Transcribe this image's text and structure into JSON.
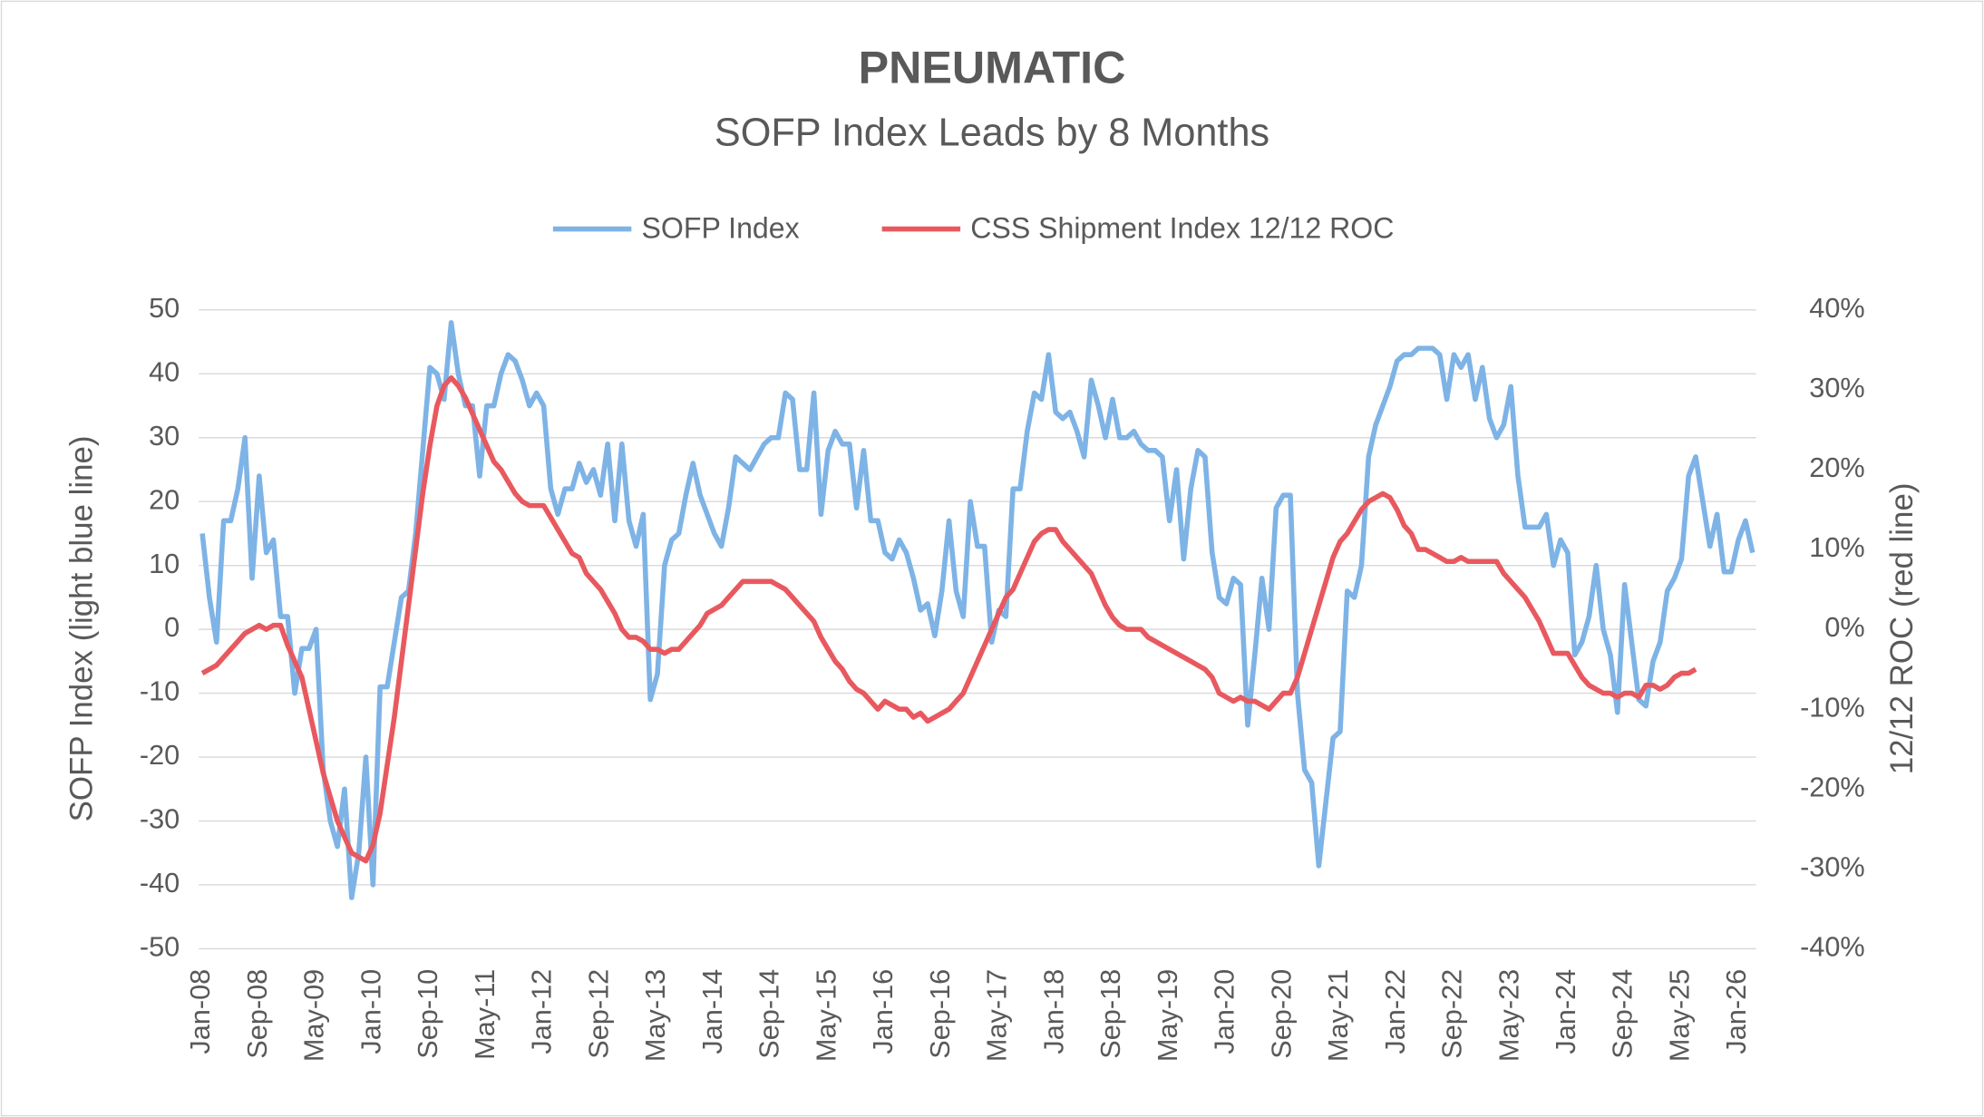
{
  "chart_data": {
    "type": "line",
    "title": "PNEUMATIC",
    "subtitle": "SOFP Index Leads by 8 Months",
    "y_label": "SOFP Index (light blue line)",
    "y2_label": "12/12 ROC (red line)",
    "categories": [
      "Jan-08",
      null,
      null,
      null,
      null,
      null,
      null,
      null,
      "Sep-08",
      null,
      null,
      null,
      null,
      null,
      null,
      null,
      "May-09",
      null,
      null,
      null,
      null,
      null,
      null,
      null,
      "Jan-10",
      null,
      null,
      null,
      null,
      null,
      null,
      null,
      "Sep-10",
      null,
      null,
      null,
      null,
      null,
      null,
      null,
      "May-11",
      null,
      null,
      null,
      null,
      null,
      null,
      null,
      "Jan-12",
      null,
      null,
      null,
      null,
      null,
      null,
      null,
      "Sep-12",
      null,
      null,
      null,
      null,
      null,
      null,
      null,
      "May-13",
      null,
      null,
      null,
      null,
      null,
      null,
      null,
      "Jan-14",
      null,
      null,
      null,
      null,
      null,
      null,
      null,
      "Sep-14",
      null,
      null,
      null,
      null,
      null,
      null,
      null,
      "May-15",
      null,
      null,
      null,
      null,
      null,
      null,
      null,
      "Jan-16",
      null,
      null,
      null,
      null,
      null,
      null,
      null,
      "Sep-16",
      null,
      null,
      null,
      null,
      null,
      null,
      null,
      "May-17",
      null,
      null,
      null,
      null,
      null,
      null,
      null,
      "Jan-18",
      null,
      null,
      null,
      null,
      null,
      null,
      null,
      "Sep-18",
      null,
      null,
      null,
      null,
      null,
      null,
      null,
      "May-19",
      null,
      null,
      null,
      null,
      null,
      null,
      null,
      "Jan-20",
      null,
      null,
      null,
      null,
      null,
      null,
      null,
      "Sep-20",
      null,
      null,
      null,
      null,
      null,
      null,
      null,
      "May-21",
      null,
      null,
      null,
      null,
      null,
      null,
      null,
      "Jan-22",
      null,
      null,
      null,
      null,
      null,
      null,
      null,
      "Sep-22",
      null,
      null,
      null,
      null,
      null,
      null,
      null,
      "May-23",
      null,
      null,
      null,
      null,
      null,
      null,
      null,
      "Jan-24",
      null,
      null,
      null,
      null,
      null,
      null,
      null,
      "Sep-24",
      null,
      null,
      null,
      null,
      null,
      null,
      null,
      "May-25",
      null,
      null,
      null,
      null,
      null,
      null,
      null,
      "Jan-26",
      null,
      null
    ],
    "series": [
      {
        "name": "SOFP Index",
        "color": "#7eb3e6",
        "axis": "y",
        "values": [
          15,
          5,
          -2,
          17,
          17,
          22,
          30,
          8,
          24,
          12,
          14,
          2,
          2,
          -10,
          -3,
          -3,
          0,
          -22,
          -30,
          -34,
          -25,
          -42,
          -35,
          -20,
          -40,
          -9,
          -9,
          -2,
          5,
          6,
          15,
          28,
          41,
          40,
          36,
          48,
          40,
          35,
          35,
          24,
          35,
          35,
          40,
          43,
          42,
          39,
          35,
          37,
          35,
          22,
          18,
          22,
          22,
          26,
          23,
          25,
          21,
          29,
          17,
          29,
          17,
          13,
          18,
          -11,
          -7,
          10,
          14,
          15,
          21,
          26,
          21,
          18,
          15,
          13,
          19,
          27,
          26,
          25,
          27,
          29,
          30,
          30,
          37,
          36,
          25,
          25,
          37,
          18,
          28,
          31,
          29,
          29,
          19,
          28,
          17,
          17,
          12,
          11,
          14,
          12,
          8,
          3,
          4,
          -1,
          6,
          17,
          6,
          2,
          20,
          13,
          13,
          -2,
          3,
          2,
          22,
          22,
          31,
          37,
          36,
          43,
          34,
          33,
          34,
          31,
          27,
          39,
          35,
          30,
          36,
          30,
          30,
          31,
          29,
          28,
          28,
          27,
          17,
          25,
          11,
          22,
          28,
          27,
          12,
          5,
          4,
          8,
          7,
          -15,
          -4,
          8,
          0,
          19,
          21,
          21,
          -10,
          -22,
          -24,
          -37,
          -27,
          -17,
          -16,
          6,
          5,
          10,
          27,
          32,
          35,
          38,
          42,
          43,
          43,
          44,
          44,
          44,
          43,
          36,
          43,
          41,
          43,
          36,
          41,
          33,
          30,
          32,
          38,
          24,
          16,
          16,
          16,
          18,
          10,
          14,
          12,
          -4,
          -2,
          2,
          10,
          0,
          -4,
          -13,
          7,
          -2,
          -11,
          -12,
          -5,
          -2,
          6,
          8,
          11,
          24,
          27,
          20,
          13,
          18,
          9,
          9,
          14,
          17,
          12
        ]
      },
      {
        "name": "CSS Shipment Index 12/12 ROC",
        "color": "#e8595f",
        "axis": "y2",
        "values": [
          -5.5,
          -5,
          -4.5,
          -3.5,
          -2.5,
          -1.5,
          -0.5,
          0,
          0.5,
          0,
          0.5,
          0.5,
          -2,
          -4,
          -6,
          -10,
          -14,
          -18,
          -21,
          -24,
          -26,
          -28,
          -28.5,
          -29,
          -27,
          -23,
          -17,
          -11,
          -4,
          3,
          10,
          17,
          23,
          28,
          30.5,
          31.5,
          30.5,
          29,
          27,
          25,
          23,
          21,
          20,
          18.5,
          17,
          16,
          15.5,
          15.5,
          15.5,
          14,
          12.5,
          11,
          9.5,
          9,
          7,
          6,
          5,
          3.5,
          2,
          0,
          -1,
          -1,
          -1.5,
          -2.5,
          -2.5,
          -3,
          -2.5,
          -2.5,
          -1.5,
          -0.5,
          0.5,
          2,
          2.5,
          3,
          4,
          5,
          6,
          6,
          6,
          6,
          6,
          5.5,
          5,
          4,
          3,
          2,
          1,
          -1,
          -2.5,
          -4,
          -5,
          -6.5,
          -7.5,
          -8,
          -9,
          -10,
          -9,
          -9.5,
          -10,
          -10,
          -11,
          -10.5,
          -11.5,
          -11,
          -10.5,
          -10,
          -9,
          -8,
          -6,
          -4,
          -2,
          0,
          2,
          4,
          5,
          7,
          9,
          11,
          12,
          12.5,
          12.5,
          11,
          10,
          9,
          8,
          7,
          5,
          3,
          1.5,
          0.5,
          0,
          0,
          0,
          -1,
          -1.5,
          -2,
          -2.5,
          -3,
          -3.5,
          -4,
          -4.5,
          -5,
          -6,
          -8,
          -8.5,
          -9,
          -8.5,
          -9,
          -9,
          -9.5,
          -10,
          -9,
          -8,
          -8,
          -6,
          -3,
          0,
          3,
          6,
          9,
          11,
          12,
          13.5,
          15,
          16,
          16.5,
          17,
          16.5,
          15,
          13,
          12,
          10,
          10,
          9.5,
          9,
          8.5,
          8.5,
          9,
          8.5,
          8.5,
          8.5,
          8.5,
          8.5,
          7,
          6,
          5,
          4,
          2.5,
          1,
          -1,
          -3,
          -3,
          -3,
          -4.5,
          -6,
          -7,
          -7.5,
          -8,
          -8,
          -8.5,
          -8,
          -8,
          -8.5,
          -7,
          -7,
          -7.5,
          -7,
          -6,
          -5.5,
          -5.5,
          -5,
          null,
          null,
          null,
          null,
          null,
          null,
          null,
          null
        ]
      }
    ],
    "ylim": [
      -50,
      50
    ],
    "yticks": [
      -50,
      -40,
      -30,
      -20,
      -10,
      0,
      10,
      20,
      30,
      40,
      50
    ],
    "y2lim": [
      -40,
      40
    ],
    "y2ticks": [
      {
        "value": -40,
        "label": "-40%"
      },
      {
        "value": -30,
        "label": "-30%"
      },
      {
        "value": -20,
        "label": "-20%"
      },
      {
        "value": -10,
        "label": "-10%"
      },
      {
        "value": 0,
        "label": "0%"
      },
      {
        "value": 10,
        "label": "10%"
      },
      {
        "value": 20,
        "label": "20%"
      },
      {
        "value": 30,
        "label": "30%"
      },
      {
        "value": 40,
        "label": "40%"
      }
    ],
    "grid": true,
    "legend": "top"
  }
}
